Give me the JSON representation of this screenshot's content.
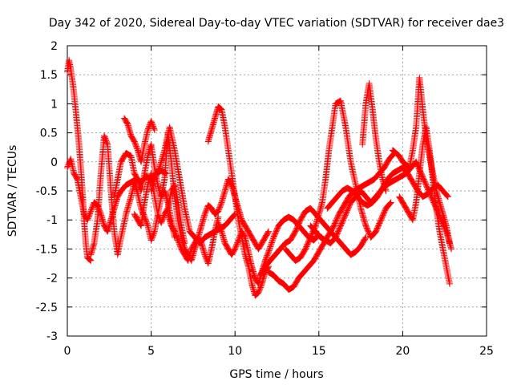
{
  "chart_data": {
    "type": "scatter",
    "title": "Day 342 of 2020, Sidereal Day-to-day VTEC variation (SDTVAR) for receiver dae3",
    "xlabel": "GPS time / hours",
    "ylabel": "SDTVAR / TECUs",
    "xlim": [
      0,
      25
    ],
    "ylim": [
      -3,
      2
    ],
    "xticks": [
      0,
      5,
      10,
      15,
      20,
      25
    ],
    "yticks": [
      -3,
      -2.5,
      -2,
      -1.5,
      -1,
      -0.5,
      0,
      0.5,
      1,
      1.5,
      2
    ],
    "grid": true,
    "marker": "+",
    "color": "#ff0000",
    "series": [
      {
        "name": "track-1",
        "x": [
          0.0,
          0.1,
          0.2,
          0.35,
          0.5,
          0.6,
          0.7,
          0.8,
          0.9,
          1.0,
          1.1,
          1.2,
          1.4
        ],
        "y": [
          1.55,
          1.75,
          1.6,
          1.3,
          0.9,
          0.6,
          0.3,
          -0.1,
          -0.5,
          -1.0,
          -1.4,
          -1.65,
          -1.7
        ]
      },
      {
        "name": "track-2",
        "x": [
          0.0,
          0.2,
          0.4,
          0.6,
          0.8,
          1.0,
          1.2,
          1.4,
          1.6,
          1.8,
          2.0,
          2.2,
          2.4,
          2.6,
          2.8,
          3.0,
          3.2,
          3.5,
          3.8,
          4.1,
          4.4,
          4.7,
          5.0,
          5.3,
          5.6,
          5.9
        ],
        "y": [
          -0.1,
          0.05,
          -0.2,
          -0.3,
          -0.6,
          -0.9,
          -1.0,
          -0.85,
          -0.7,
          -0.75,
          -0.9,
          -1.1,
          -1.2,
          -1.0,
          -0.8,
          -0.6,
          -0.5,
          -0.4,
          -0.35,
          -0.3,
          -0.35,
          -0.25,
          -0.3,
          -0.2,
          -0.15,
          -0.2
        ]
      },
      {
        "name": "track-3",
        "x": [
          1.4,
          1.6,
          1.8,
          2.0,
          2.2,
          2.4,
          2.6,
          2.8,
          3.0,
          3.2,
          3.5,
          3.8,
          4.0,
          4.2,
          4.4,
          4.6,
          4.8,
          5.0,
          5.2,
          5.4,
          5.6,
          5.8,
          6.0,
          6.2,
          6.4
        ],
        "y": [
          -1.6,
          -1.4,
          -1.0,
          -0.2,
          0.45,
          0.3,
          -0.5,
          -1.2,
          -1.6,
          -1.3,
          -0.9,
          -0.6,
          -0.35,
          -0.55,
          -0.8,
          -0.95,
          -1.1,
          -1.35,
          -1.2,
          -0.9,
          -0.6,
          -0.5,
          -0.7,
          -1.0,
          -1.3
        ]
      },
      {
        "name": "track-4",
        "x": [
          2.8,
          3.0,
          3.2,
          3.5,
          3.8,
          4.0,
          4.2,
          4.4,
          4.6,
          4.8,
          5.0,
          5.2,
          5.4,
          5.6,
          5.8,
          6.0,
          6.2,
          6.4,
          6.6,
          6.8,
          7.0,
          7.2,
          7.4,
          7.6,
          7.8,
          8.0,
          8.2,
          8.4,
          8.6,
          8.8,
          9.0
        ],
        "y": [
          -0.6,
          -0.3,
          0.0,
          0.15,
          0.1,
          -0.2,
          -0.3,
          -0.5,
          -0.2,
          0.1,
          0.3,
          -0.1,
          -0.4,
          -0.6,
          -0.3,
          0.5,
          0.0,
          -0.6,
          -1.0,
          -1.3,
          -1.5,
          -1.6,
          -1.7,
          -1.5,
          -1.3,
          -1.4,
          -1.6,
          -1.75,
          -1.5,
          -1.2,
          -0.95
        ]
      },
      {
        "name": "track-5",
        "x": [
          3.4,
          3.6,
          3.8,
          4.0,
          4.2,
          4.4,
          4.6,
          4.8,
          5.0,
          5.2
        ],
        "y": [
          0.75,
          0.65,
          0.45,
          0.35,
          0.2,
          0.0,
          0.3,
          0.55,
          0.7,
          0.55
        ]
      },
      {
        "name": "track-6",
        "x": [
          4.0,
          4.2,
          4.4,
          4.6,
          4.8,
          5.0,
          5.2,
          5.4,
          5.6,
          5.8,
          6.0,
          6.2,
          6.4,
          6.6,
          6.8,
          7.0
        ],
        "y": [
          -0.9,
          -1.0,
          -1.1,
          -0.7,
          -0.4,
          -0.2,
          -0.6,
          -0.9,
          -1.05,
          -0.9,
          -0.8,
          -0.5,
          -0.4,
          -0.7,
          -1.1,
          -1.4
        ]
      },
      {
        "name": "track-7",
        "x": [
          5.0,
          5.2,
          5.5,
          5.8,
          6.1,
          6.4,
          6.7,
          7.0,
          7.3,
          7.6,
          7.9,
          8.2,
          8.5,
          8.8,
          9.1,
          9.4,
          9.7,
          10.0
        ],
        "y": [
          -0.5,
          -0.3,
          -0.1,
          0.2,
          0.6,
          0.2,
          -0.3,
          -0.8,
          -1.2,
          -1.3,
          -1.4,
          -1.3,
          -1.25,
          -1.2,
          -1.15,
          -1.1,
          -1.0,
          -0.9
        ]
      },
      {
        "name": "track-8",
        "x": [
          6.0,
          6.2,
          6.4,
          6.6,
          6.8,
          7.0,
          7.2,
          7.4,
          7.6,
          7.8,
          8.0,
          8.2,
          8.4,
          8.6,
          8.8,
          9.0,
          9.2,
          9.4,
          9.6,
          9.8,
          10.0,
          10.2,
          10.4,
          10.6,
          10.8,
          11.0,
          11.2,
          11.4,
          11.6,
          11.8,
          12.0
        ],
        "y": [
          -0.9,
          -1.1,
          -1.2,
          -1.35,
          -1.5,
          -1.6,
          -1.7,
          -1.5,
          -1.4,
          -1.3,
          -1.1,
          -0.9,
          -0.75,
          -0.8,
          -0.9,
          -0.85,
          -0.7,
          -0.5,
          -0.3,
          -0.4,
          -0.6,
          -0.8,
          -1.0,
          -1.1,
          -1.2,
          -1.3,
          -1.4,
          -1.5,
          -1.4,
          -1.3,
          -1.2
        ]
      },
      {
        "name": "track-9",
        "x": [
          8.4,
          8.6,
          8.8,
          9.0,
          9.2,
          9.4,
          9.6,
          9.8,
          10.0,
          10.2,
          10.4,
          10.6,
          10.8,
          11.0,
          11.2,
          11.4,
          11.6,
          11.8,
          12.0
        ],
        "y": [
          0.35,
          0.55,
          0.75,
          0.95,
          0.9,
          0.6,
          0.2,
          -0.2,
          -0.6,
          -1.0,
          -1.3,
          -1.6,
          -1.8,
          -2.1,
          -2.3,
          -2.25,
          -2.1,
          -1.9,
          -1.8
        ]
      },
      {
        "name": "track-10",
        "x": [
          9.0,
          9.2,
          9.4,
          9.6,
          9.8,
          10.0,
          10.2,
          10.4,
          10.6,
          10.8,
          11.0,
          11.2,
          11.4,
          11.6,
          11.8,
          12.0,
          12.3,
          12.6,
          12.9,
          13.2,
          13.5,
          13.8,
          14.1,
          14.4,
          14.7,
          15.0
        ],
        "y": [
          -1.05,
          -1.2,
          -1.4,
          -1.5,
          -1.6,
          -1.5,
          -1.35,
          -1.2,
          -1.3,
          -1.55,
          -1.8,
          -2.0,
          -2.1,
          -1.9,
          -1.7,
          -1.55,
          -1.3,
          -1.1,
          -1.0,
          -0.95,
          -1.0,
          -1.1,
          -1.2,
          -1.3,
          -1.35,
          -1.25
        ]
      },
      {
        "name": "track-11",
        "x": [
          11.5,
          11.8,
          12.1,
          12.4,
          12.7,
          13.0,
          13.3,
          13.6,
          13.9,
          14.2,
          14.5,
          14.8,
          15.1,
          15.4,
          15.7,
          16.0,
          16.3,
          16.6,
          16.9,
          17.2,
          17.5,
          17.8
        ],
        "y": [
          -1.95,
          -1.8,
          -1.7,
          -1.6,
          -1.5,
          -1.4,
          -1.35,
          -1.2,
          -1.0,
          -0.85,
          -0.8,
          -0.9,
          -1.0,
          -1.1,
          -1.2,
          -1.3,
          -1.4,
          -1.5,
          -1.6,
          -1.55,
          -1.45,
          -1.3
        ]
      },
      {
        "name": "track-12",
        "x": [
          12.0,
          12.3,
          12.6,
          12.9,
          13.2,
          13.5,
          13.8,
          14.1,
          14.4,
          14.7,
          15.0,
          15.3,
          15.6,
          15.9,
          16.2,
          16.5,
          16.8,
          17.1,
          17.4,
          17.7,
          18.0,
          18.3,
          18.6,
          18.9,
          19.2,
          19.5
        ],
        "y": [
          -1.9,
          -1.95,
          -2.05,
          -2.1,
          -2.2,
          -2.15,
          -2.0,
          -1.9,
          -1.8,
          -1.7,
          -1.55,
          -1.4,
          -1.25,
          -1.1,
          -0.9,
          -0.75,
          -0.6,
          -0.5,
          -0.45,
          -0.4,
          -0.35,
          -0.3,
          -0.2,
          -0.1,
          0.05,
          0.15
        ]
      },
      {
        "name": "track-13",
        "x": [
          13.0,
          13.3,
          13.6,
          13.9,
          14.2,
          14.5,
          14.8,
          15.0,
          15.2,
          15.4,
          15.6,
          15.8,
          16.0,
          16.3,
          16.6,
          16.9,
          17.2,
          17.5,
          17.8,
          18.1,
          18.4,
          18.7,
          19.0,
          19.3
        ],
        "y": [
          -1.5,
          -1.6,
          -1.7,
          -1.65,
          -1.5,
          -1.3,
          -1.1,
          -0.9,
          -0.7,
          -0.3,
          0.2,
          0.6,
          1.0,
          1.05,
          0.6,
          0.0,
          -0.4,
          -0.8,
          -1.1,
          -1.3,
          -1.2,
          -1.0,
          -0.8,
          -0.7
        ]
      },
      {
        "name": "track-14",
        "x": [
          14.5,
          14.8,
          15.1,
          15.4,
          15.7,
          16.0,
          16.3,
          16.6,
          16.9,
          17.2,
          17.5,
          17.8,
          18.1,
          18.4,
          18.7,
          19.0,
          19.3,
          19.6,
          19.9,
          20.2,
          20.5,
          20.8,
          21.1,
          21.4,
          21.7,
          22.0,
          22.3,
          22.6,
          22.9
        ],
        "y": [
          -1.1,
          -1.2,
          -1.3,
          -1.35,
          -1.4,
          -1.3,
          -1.1,
          -0.9,
          -0.7,
          -0.6,
          -0.5,
          -0.6,
          -0.7,
          -0.6,
          -0.5,
          -0.4,
          -0.35,
          -0.3,
          -0.25,
          -0.2,
          -0.1,
          0.0,
          -0.2,
          -0.4,
          -0.6,
          -0.8,
          -1.0,
          -1.2,
          -1.5
        ]
      },
      {
        "name": "track-15",
        "x": [
          15.5,
          15.8,
          16.1,
          16.4,
          16.7,
          17.0,
          17.3,
          17.6,
          17.9,
          18.2,
          18.5,
          18.8,
          19.1,
          19.4,
          19.7,
          20.0,
          20.3,
          20.6,
          20.9,
          21.2,
          21.5,
          21.8,
          22.1,
          22.4,
          22.7
        ],
        "y": [
          -0.8,
          -0.7,
          -0.6,
          -0.5,
          -0.45,
          -0.5,
          -0.6,
          -0.7,
          -0.75,
          -0.7,
          -0.6,
          -0.45,
          -0.3,
          -0.2,
          -0.15,
          -0.1,
          -0.2,
          -0.35,
          -0.5,
          -0.6,
          -0.55,
          -0.45,
          -0.4,
          -0.5,
          -0.6
        ]
      },
      {
        "name": "track-16",
        "x": [
          17.6,
          17.8,
          18.0,
          18.2,
          18.4,
          18.6,
          18.8,
          19.0
        ],
        "y": [
          0.3,
          1.0,
          1.35,
          0.9,
          0.4,
          0.0,
          -0.3,
          -0.5
        ]
      },
      {
        "name": "track-17",
        "x": [
          19.4,
          19.6,
          19.8,
          20.0,
          20.2,
          20.4,
          20.6,
          20.8,
          21.0,
          21.2,
          21.4,
          21.6,
          21.8,
          22.0,
          22.2,
          22.4,
          22.6,
          22.8
        ],
        "y": [
          0.2,
          0.15,
          0.1,
          0.0,
          -0.05,
          -0.1,
          0.2,
          0.6,
          1.45,
          0.9,
          0.4,
          0.1,
          -0.2,
          -0.5,
          -0.7,
          -0.9,
          -1.1,
          -1.4
        ]
      },
      {
        "name": "track-18",
        "x": [
          19.8,
          20.0,
          20.2,
          20.4,
          20.6,
          20.8,
          21.0,
          21.2,
          21.4,
          21.6,
          21.8,
          22.0,
          22.2,
          22.4,
          22.6,
          22.8
        ],
        "y": [
          -0.6,
          -0.7,
          -0.8,
          -0.9,
          -1.0,
          -0.7,
          -0.2,
          0.3,
          0.6,
          0.2,
          -0.3,
          -0.8,
          -1.2,
          -1.5,
          -1.8,
          -2.1
        ]
      }
    ]
  }
}
